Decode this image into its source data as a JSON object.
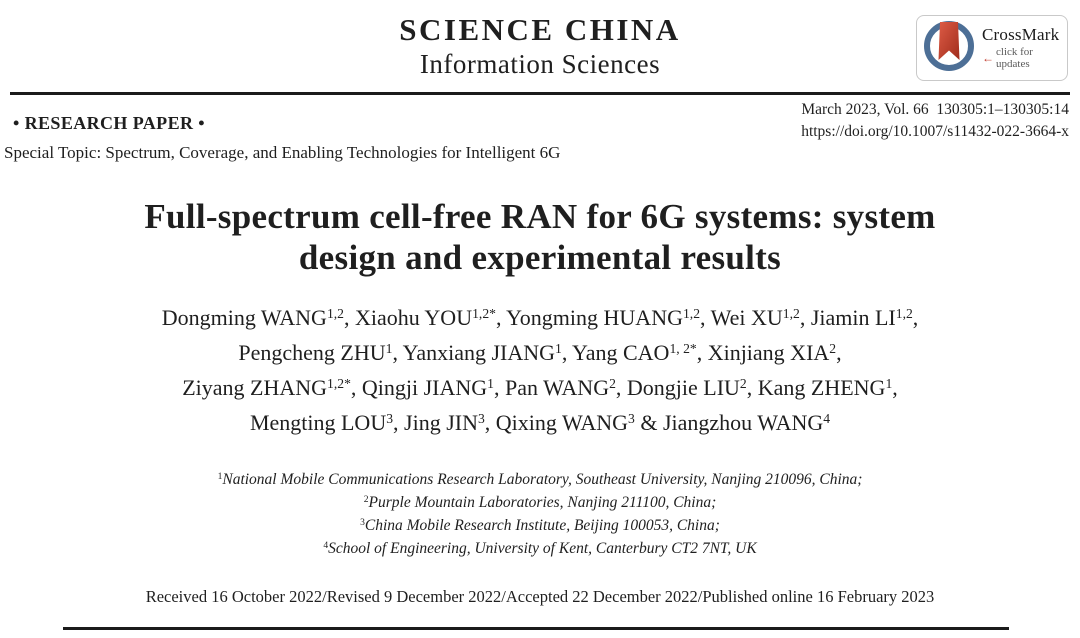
{
  "journal": {
    "name": "SCIENCE CHINA",
    "subtitle": "Information Sciences"
  },
  "crossmark": {
    "name": "CrossMark",
    "tagline": "click for updates",
    "arrow": "←",
    "colors": {
      "ring": "#4d6f96",
      "ribbon_light": "#dd5b45",
      "ribbon_dark": "#a02c1c"
    }
  },
  "meta": {
    "paper_type": "• RESEARCH PAPER •",
    "issue_info": "March 2023, Vol. 66  130305:1–130305:14",
    "doi": "https://doi.org/10.1007/s11432-022-3664-x",
    "special_topic": "Special Topic: Spectrum, Coverage, and Enabling Technologies for Intelligent 6G"
  },
  "title": {
    "line1": "Full-spectrum cell-free RAN for 6G systems: system",
    "line2": "design and experimental results"
  },
  "authors": {
    "lines": [
      [
        {
          "name": "Dongming WANG",
          "sup": "1,2",
          "sep": ", "
        },
        {
          "name": "Xiaohu YOU",
          "sup": "1,2*",
          "sep": ", "
        },
        {
          "name": "Yongming HUANG",
          "sup": "1,2",
          "sep": ", "
        },
        {
          "name": "Wei XU",
          "sup": "1,2",
          "sep": ", "
        },
        {
          "name": "Jiamin LI",
          "sup": "1,2",
          "sep": ","
        }
      ],
      [
        {
          "name": "Pengcheng ZHU",
          "sup": "1",
          "sep": ", "
        },
        {
          "name": "Yanxiang JIANG",
          "sup": "1",
          "sep": ", "
        },
        {
          "name": "Yang CAO",
          "sup": "1, 2*",
          "sep": ", "
        },
        {
          "name": "Xinjiang XIA",
          "sup": "2",
          "sep": ","
        }
      ],
      [
        {
          "name": "Ziyang ZHANG",
          "sup": "1,2*",
          "sep": ", "
        },
        {
          "name": "Qingji JIANG",
          "sup": "1",
          "sep": ", "
        },
        {
          "name": "Pan WANG",
          "sup": "2",
          "sep": ", "
        },
        {
          "name": "Dongjie LIU",
          "sup": "2",
          "sep": ", "
        },
        {
          "name": "Kang ZHENG",
          "sup": "1",
          "sep": ","
        }
      ],
      [
        {
          "name": "Mengting LOU",
          "sup": "3",
          "sep": ", "
        },
        {
          "name": "Jing JIN",
          "sup": "3",
          "sep": ", "
        },
        {
          "name": "Qixing WANG",
          "sup": "3",
          "sep": " & "
        },
        {
          "name": "Jiangzhou WANG",
          "sup": "4",
          "sep": ""
        }
      ]
    ]
  },
  "affiliations": [
    {
      "sup": "1",
      "text": "National Mobile Communications Research Laboratory, Southeast University, Nanjing 210096, China;"
    },
    {
      "sup": "2",
      "text": "Purple Mountain Laboratories, Nanjing 211100, China;"
    },
    {
      "sup": "3",
      "text": "China Mobile Research Institute, Beijing 100053, China;"
    },
    {
      "sup": "4",
      "text": "School of Engineering, University of Kent, Canterbury CT2 7NT, UK"
    }
  ],
  "history": "Received 16 October 2022/Revised 9 December 2022/Accepted 22 December 2022/Published online 16 February 2023",
  "colors": {
    "text": "#1f1f1f",
    "rule": "#1b1b1b",
    "background": "#ffffff"
  }
}
